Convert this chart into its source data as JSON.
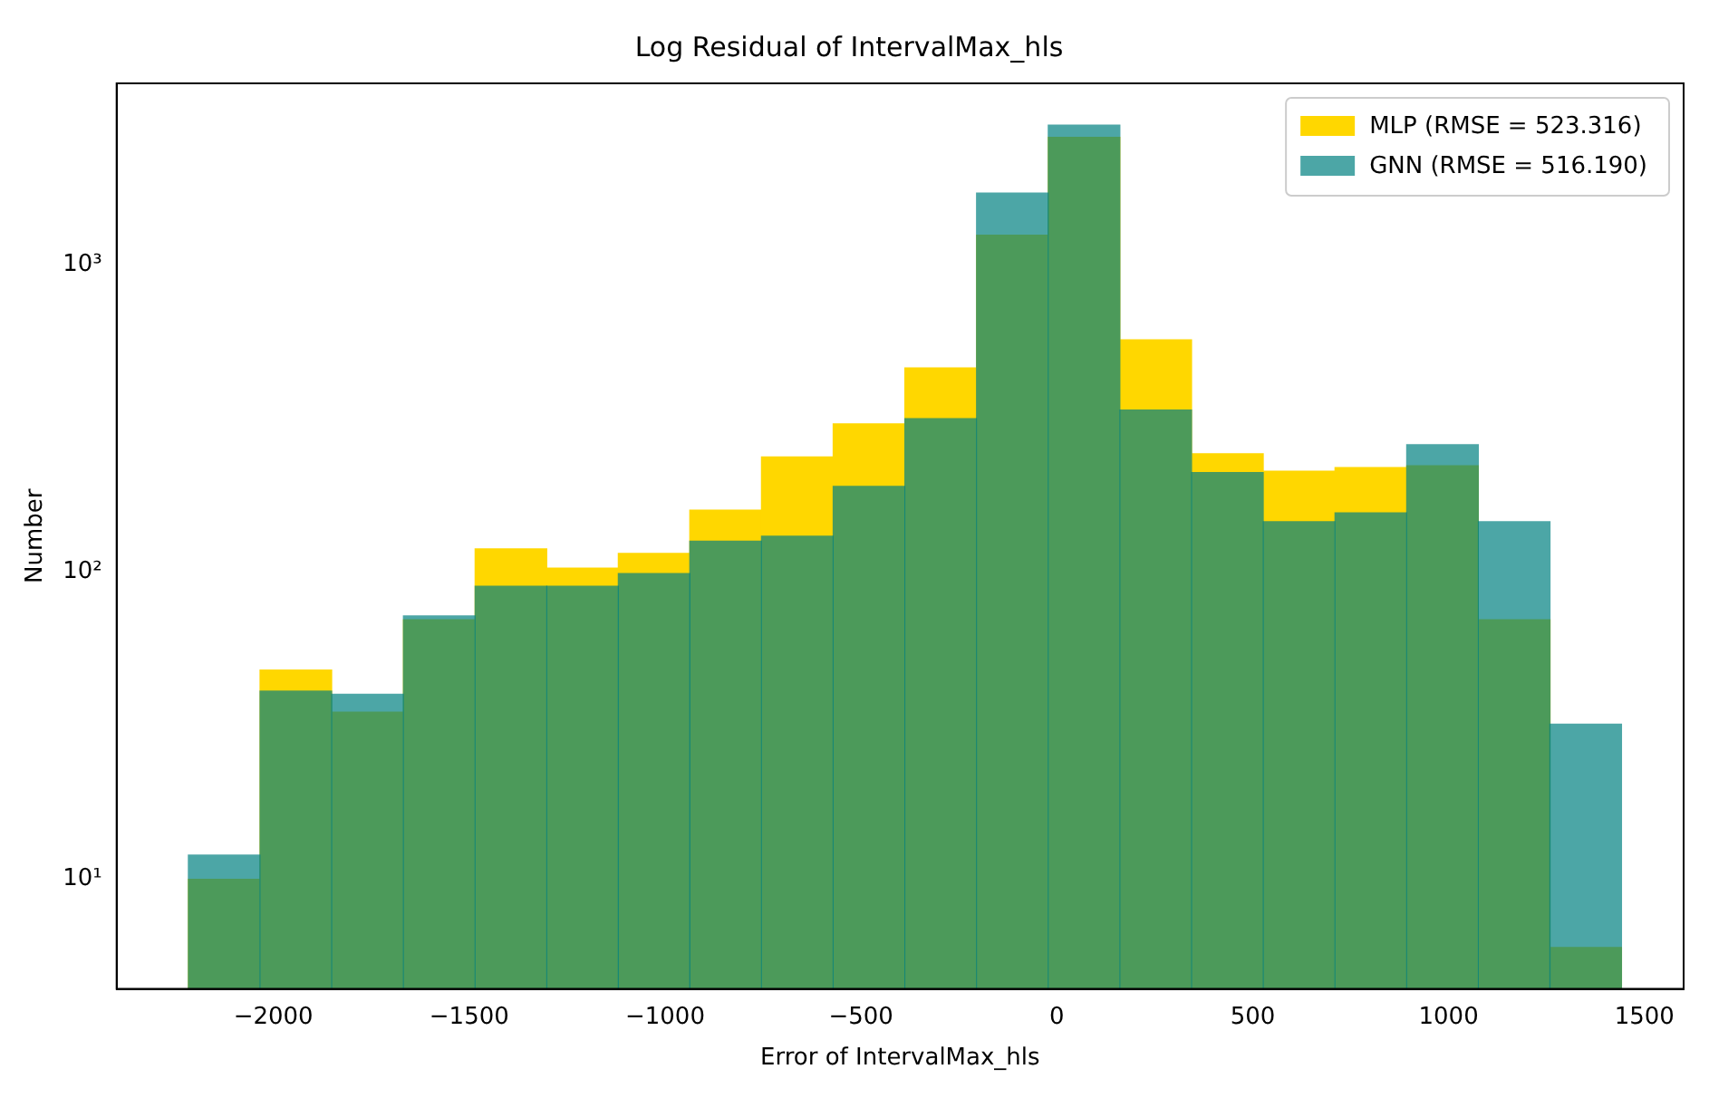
{
  "chart_data": {
    "type": "histogram",
    "title": "Log Residual of IntervalMax_hls",
    "xlabel": "Error of IntervalMax_hls",
    "ylabel": "Number",
    "bins": [
      -2217,
      -2034,
      -1851,
      -1668,
      -1485,
      -1302,
      -1119,
      -937,
      -754,
      -571,
      -388,
      -205,
      -22,
      161,
      344,
      527,
      710,
      893,
      1076,
      1259,
      1441
    ],
    "series": [
      {
        "name": "MLP (RMSE = 523.316)",
        "color": "#ffd700",
        "values": [
          10,
          48,
          35,
          70,
          119,
          103,
          115,
          159,
          237,
          304,
          462,
          1250,
          2600,
          570,
          243,
          213,
          219,
          222,
          70,
          6
        ]
      },
      {
        "name": "GNN (RMSE = 516.190)",
        "color": "#008080",
        "values": [
          12,
          41,
          40,
          72,
          90,
          90,
          99,
          126,
          131,
          190,
          316,
          1712,
          2850,
          337,
          211,
          146,
          156,
          260,
          146,
          32
        ]
      }
    ],
    "log": "y",
    "xlim": [
      -2400,
      1600
    ],
    "xticks": [
      {
        "value": -2000,
        "label": "−2000"
      },
      {
        "value": -1500,
        "label": "−1500"
      },
      {
        "value": -1000,
        "label": "−1000"
      },
      {
        "value": -500,
        "label": "−500"
      },
      0,
      500,
      1000,
      1500
    ],
    "ylim": [
      4.4,
      3900
    ],
    "yticks": [
      {
        "value": 10,
        "label": "10¹"
      },
      {
        "value": 100,
        "label": "10²"
      },
      {
        "value": 1000,
        "label": "10³"
      }
    ],
    "legend": "top right",
    "grid": false
  }
}
